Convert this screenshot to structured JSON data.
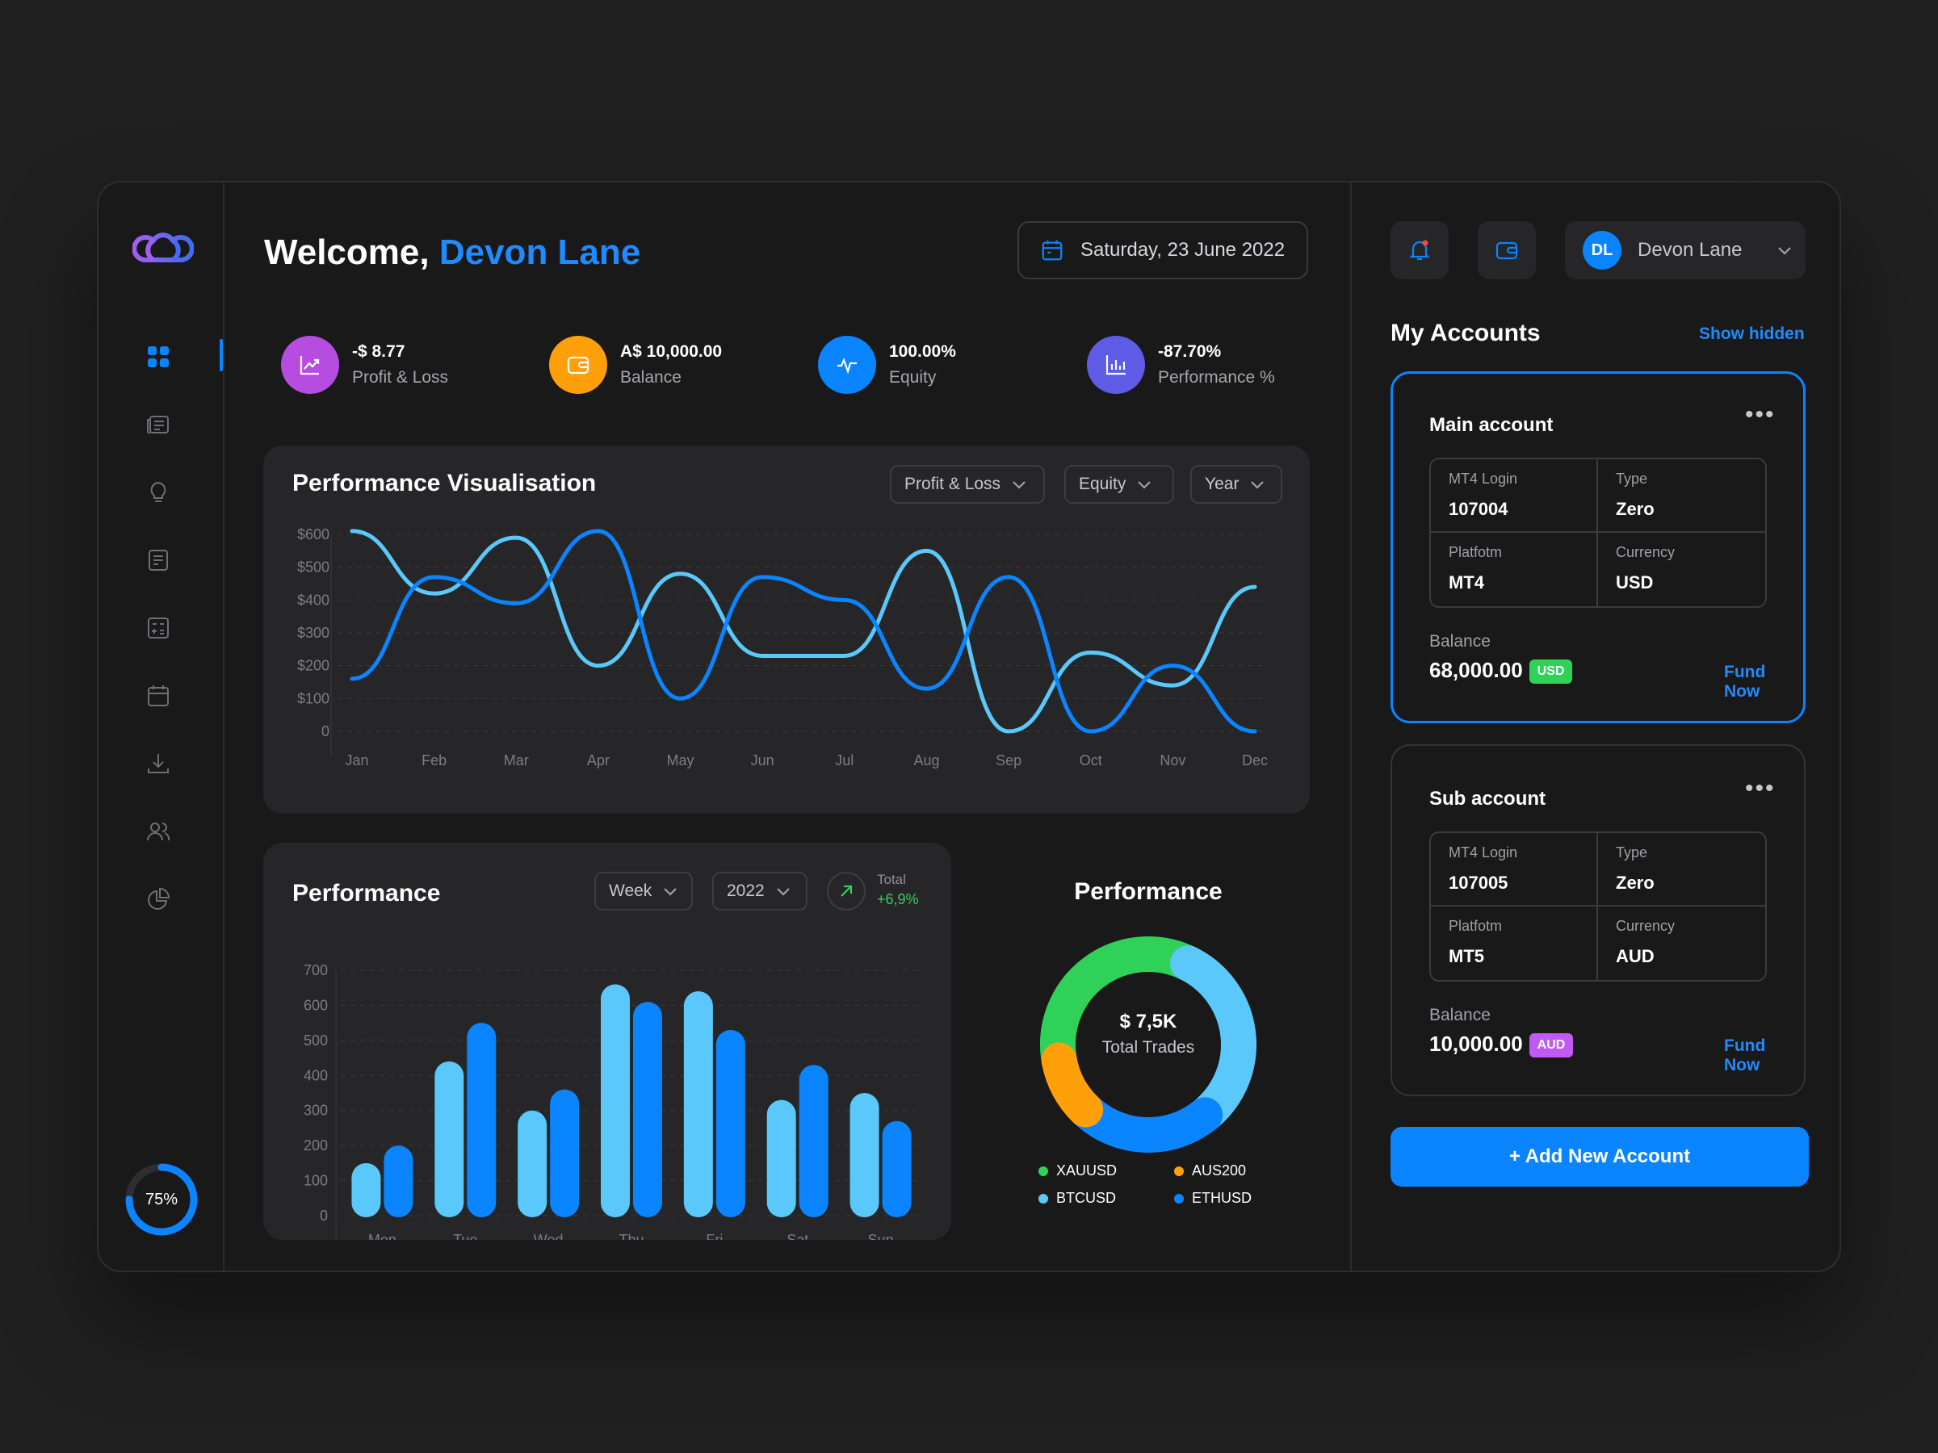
{
  "header": {
    "welcome": "Welcome,",
    "user_name": "Devon Lane",
    "date": "Saturday, 23 June 2022"
  },
  "stats": [
    {
      "value": "-$ 8.77",
      "label": "Profit & Loss",
      "color": "#b74de0",
      "icon": "chart-up-icon"
    },
    {
      "value": "A$ 10,000.00",
      "label": "Balance",
      "color": "#ff9f0a",
      "icon": "wallet-icon"
    },
    {
      "value": "100.00%",
      "label": "Equity",
      "color": "#0a84ff",
      "icon": "pulse-icon"
    },
    {
      "value": "-87.70%",
      "label": "Performance %",
      "color": "#5e5ce6",
      "icon": "bar-chart-icon"
    }
  ],
  "sidebar": {
    "icons": [
      "dashboard-icon",
      "news-icon",
      "lightbulb-icon",
      "document-icon",
      "calculator-icon",
      "calendar-icon",
      "download-icon",
      "users-icon",
      "pie-chart-icon"
    ],
    "progress": 0.75,
    "progress_label": "75%"
  },
  "perf_vis": {
    "title": "Performance Visualisation",
    "filters": [
      "Profit & Loss",
      "Equity",
      "Year"
    ]
  },
  "perf_bar": {
    "title": "Performance",
    "filters": [
      "Week",
      "2022"
    ],
    "total_label": "Total",
    "total_value": "+6,9%"
  },
  "donut": {
    "title": "Performance",
    "value": "$ 7,5K",
    "subtitle": "Total Trades"
  },
  "topbar": {
    "user_initials": "DL",
    "user_name": "Devon Lane"
  },
  "accounts": {
    "title": "My Accounts",
    "show_hidden": "Show hidden",
    "items": [
      {
        "name": "Main account",
        "login_label": "MT4 Login",
        "login": "107004",
        "type_label": "Type",
        "type": "Zero",
        "platform_label": "Platfotm",
        "platform": "MT4",
        "currency_label": "Currency",
        "currency": "USD",
        "balance_label": "Balance",
        "balance": "68,000.00",
        "badge": "USD",
        "badge_color": "#30d158",
        "fund": "Fund Now"
      },
      {
        "name": "Sub account",
        "login_label": "MT4 Login",
        "login": "107005",
        "type_label": "Type",
        "type": "Zero",
        "platform_label": "Platfotm",
        "platform": "MT5",
        "currency_label": "Currency",
        "currency": "AUD",
        "balance_label": "Balance",
        "balance": "10,000.00",
        "badge": "AUD",
        "badge_color": "#bf5af2",
        "fund": "Fund Now"
      }
    ],
    "add_button": "+ Add New Account"
  },
  "colors": {
    "accent": "#0a84ff",
    "light_blue": "#5ac8fa",
    "green": "#30d158",
    "orange": "#ff9f0a"
  },
  "chart_data": [
    {
      "type": "line",
      "title": "Performance Visualisation",
      "x": [
        "Jan",
        "Feb",
        "Mar",
        "Apr",
        "May",
        "Jun",
        "Jul",
        "Aug",
        "Sep",
        "Oct",
        "Nov",
        "Dec"
      ],
      "ytick_labels": [
        "$600",
        "$500",
        "$400",
        "$300",
        "$200",
        "$100",
        "0"
      ],
      "ylim": [
        0,
        600
      ],
      "series": [
        {
          "values": [
            610,
            420,
            590,
            200,
            480,
            230,
            230,
            550,
            0,
            240,
            140,
            440
          ],
          "color": "#5ac8fa"
        },
        {
          "values": [
            160,
            470,
            390,
            610,
            100,
            470,
            400,
            130,
            470,
            0,
            200,
            0
          ],
          "color": "#0a84ff"
        }
      ]
    },
    {
      "type": "bar",
      "title": "Performance",
      "categories": [
        "Mon",
        "Tue",
        "Wed",
        "Thu",
        "Fri",
        "Sat",
        "Sun"
      ],
      "ytick_labels": [
        "700",
        "600",
        "500",
        "400",
        "300",
        "200",
        "100",
        "0"
      ],
      "ylim": [
        0,
        700
      ],
      "series": [
        {
          "values": [
            150,
            440,
            300,
            660,
            640,
            330,
            350
          ],
          "color": "#5ac8fa"
        },
        {
          "values": [
            200,
            550,
            360,
            610,
            530,
            430,
            270
          ],
          "color": "#0a84ff"
        }
      ]
    },
    {
      "type": "pie",
      "title": "Performance",
      "labels": [
        "XAUUSD",
        "AUS200",
        "BTCUSD",
        "ETHUSD"
      ],
      "values": [
        35,
        10,
        32,
        23
      ],
      "colors": [
        "#30d158",
        "#ff9f0a",
        "#5ac8fa",
        "#0a84ff"
      ]
    }
  ]
}
